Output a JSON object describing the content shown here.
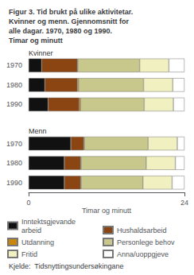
{
  "chart_data": {
    "type": "bar",
    "orientation": "horizontal",
    "stacked": true,
    "title": "Figur 3. Tid brukt på ulike aktivitetar.\nKvinner og menn. Gjennomsnitt for\nalle dagar. 1970, 1980 og 1990.\nTimar og minutt",
    "source": "Kjelde:  Tidsnyttingsundersøkingane",
    "xlabel": "Timar og minutt",
    "categories": [
      "1970",
      "1980",
      "1990",
      null,
      "1970",
      "1980",
      "1990"
    ],
    "annotations": [
      "Kvinner",
      "Menn"
    ],
    "series": [
      {
        "name": "Inntektsgjevande arbeid",
        "color": "#111111",
        "values": [
          2.0,
          2.5,
          3.0,
          null,
          6.5,
          5.5,
          5.5
        ]
      },
      {
        "name": "Hushaldsarbeid",
        "color": "#8B4513",
        "values": [
          5.5,
          5.0,
          4.8,
          null,
          2.0,
          2.5,
          2.5
        ]
      },
      {
        "name": "Utdanning",
        "color": "#C8860A",
        "values": [
          0.1,
          0.2,
          0.2,
          null,
          0.1,
          0.1,
          0.1
        ]
      },
      {
        "name": "Personlege behov",
        "color": "#C8C88C",
        "values": [
          9.5,
          10.0,
          9.8,
          null,
          9.8,
          10.0,
          9.5
        ]
      },
      {
        "name": "Fritid",
        "color": "#F0F0C0",
        "values": [
          4.5,
          4.5,
          4.5,
          null,
          4.5,
          4.5,
          4.5
        ]
      },
      {
        "name": "Anna/uoppgjeve",
        "color": "#FFFFFF",
        "values": [
          2.4,
          1.8,
          1.7,
          null,
          1.1,
          1.4,
          1.9
        ]
      }
    ],
    "xlim": [
      0,
      24
    ],
    "xticks": [
      0,
      24
    ],
    "grid": false,
    "legend": "bottom"
  }
}
